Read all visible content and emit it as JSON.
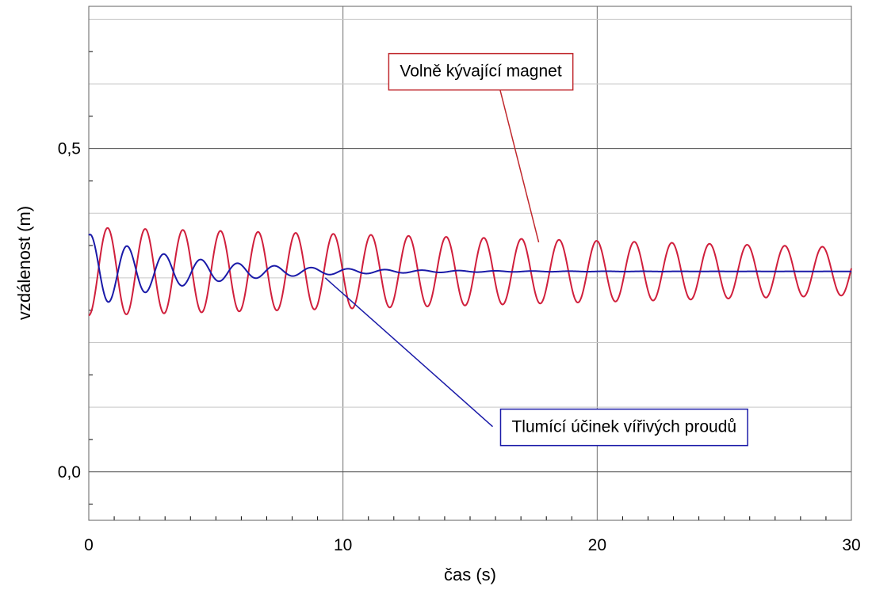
{
  "chart_data": {
    "type": "line",
    "title": "",
    "xlabel": "čas (s)",
    "ylabel": "vzdálenost (m)",
    "xlim": [
      0,
      30
    ],
    "ylim": [
      -0.075,
      0.72
    ],
    "grid": true,
    "x_ticks": [
      0,
      10,
      20,
      30
    ],
    "x_tick_labels": [
      "0",
      "10",
      "20",
      "30"
    ],
    "y_ticks": [
      0.0,
      0.5
    ],
    "y_tick_labels": [
      "0,0",
      "0,5"
    ],
    "series": [
      {
        "name": "Volně kývající magnet",
        "color": "#d01f3c",
        "model": {
          "offset": 0.31,
          "amplitude_start": 0.068,
          "amplitude_end": 0.037,
          "period": 1.48,
          "phase_offset": 0.0
        }
      },
      {
        "name": "Tlumící účinek vířivých proudů",
        "color": "#1a1aa8",
        "model": {
          "offset": 0.31,
          "amplitude_start": 0.058,
          "decay_rate": 0.26,
          "period": 1.45,
          "phase_offset": 0.0
        }
      }
    ],
    "annotations": [
      {
        "text": "Volně kývající magnet",
        "series": 0,
        "color": "#c0282d",
        "box_at": {
          "x": 11.8,
          "y": 0.62
        },
        "arrow_to": {
          "x": 17.7,
          "y": 0.355
        }
      },
      {
        "text": "Tlumící účinek vířivých proudů",
        "series": 1,
        "color": "#1a1aa8",
        "box_at": {
          "x": 16.2,
          "y": 0.07
        },
        "arrow_to": {
          "x": 9.3,
          "y": 0.3
        }
      }
    ]
  }
}
